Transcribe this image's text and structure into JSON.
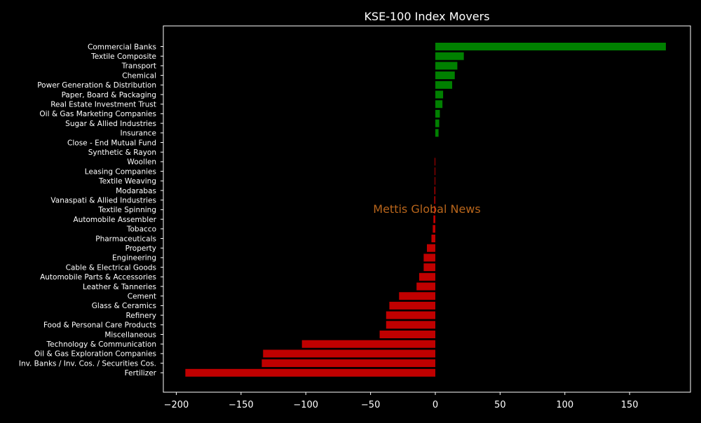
{
  "chart_data": {
    "type": "bar",
    "orientation": "horizontal",
    "title": "KSE-100 Index Movers",
    "xlabel": "",
    "ylabel": "",
    "watermark": "Mettis Global News",
    "xlim": [
      -210,
      197
    ],
    "xticks": [
      -200,
      -150,
      -100,
      -50,
      0,
      50,
      100,
      150
    ],
    "xtick_labels": [
      "−200",
      "−150",
      "−100",
      "−50",
      "0",
      "50",
      "100",
      "150"
    ],
    "grid": false,
    "legend": "none",
    "colors": {
      "background": "#000000",
      "axes": "#ffffff",
      "positive": "#008000",
      "negative": "#c00000",
      "watermark": "#b8651b"
    },
    "categories": [
      "Commercial Banks",
      "Textile Composite",
      "Transport",
      "Chemical",
      "Power Generation & Distribution",
      "Paper, Board & Packaging",
      "Real Estate Investment Trust",
      "Oil & Gas Marketing Companies",
      "Sugar & Allied Industries",
      "Insurance",
      "Close - End Mutual Fund",
      "Synthetic & Rayon",
      "Woollen",
      "Leasing Companies",
      "Textile Weaving",
      "Modarabas",
      "Vanaspati & Allied Industries",
      "Textile Spinning",
      "Automobile Assembler",
      "Tobacco",
      "Pharmaceuticals",
      "Property",
      "Engineering",
      "Cable & Electrical Goods",
      "Automobile Parts & Accessories",
      "Leather & Tanneries",
      "Cement",
      "Glass & Ceramics",
      "Refinery",
      "Food & Personal Care Products",
      "Miscellaneous",
      "Technology & Communication",
      "Oil & Gas Exploration Companies",
      "Inv. Banks / Inv. Cos. / Securities Cos.",
      "Fertilizer"
    ],
    "values": [
      178,
      22,
      17,
      15,
      13,
      6,
      5.5,
      3.5,
      3,
      2.5,
      0,
      0,
      -0.5,
      -0.5,
      -0.5,
      -0.7,
      -0.8,
      -1,
      -1.5,
      -2,
      -3,
      -6.5,
      -9,
      -9,
      -12.5,
      -14.5,
      -28,
      -35.5,
      -38,
      -38,
      -43,
      -103,
      -133,
      -134,
      -193
    ]
  }
}
